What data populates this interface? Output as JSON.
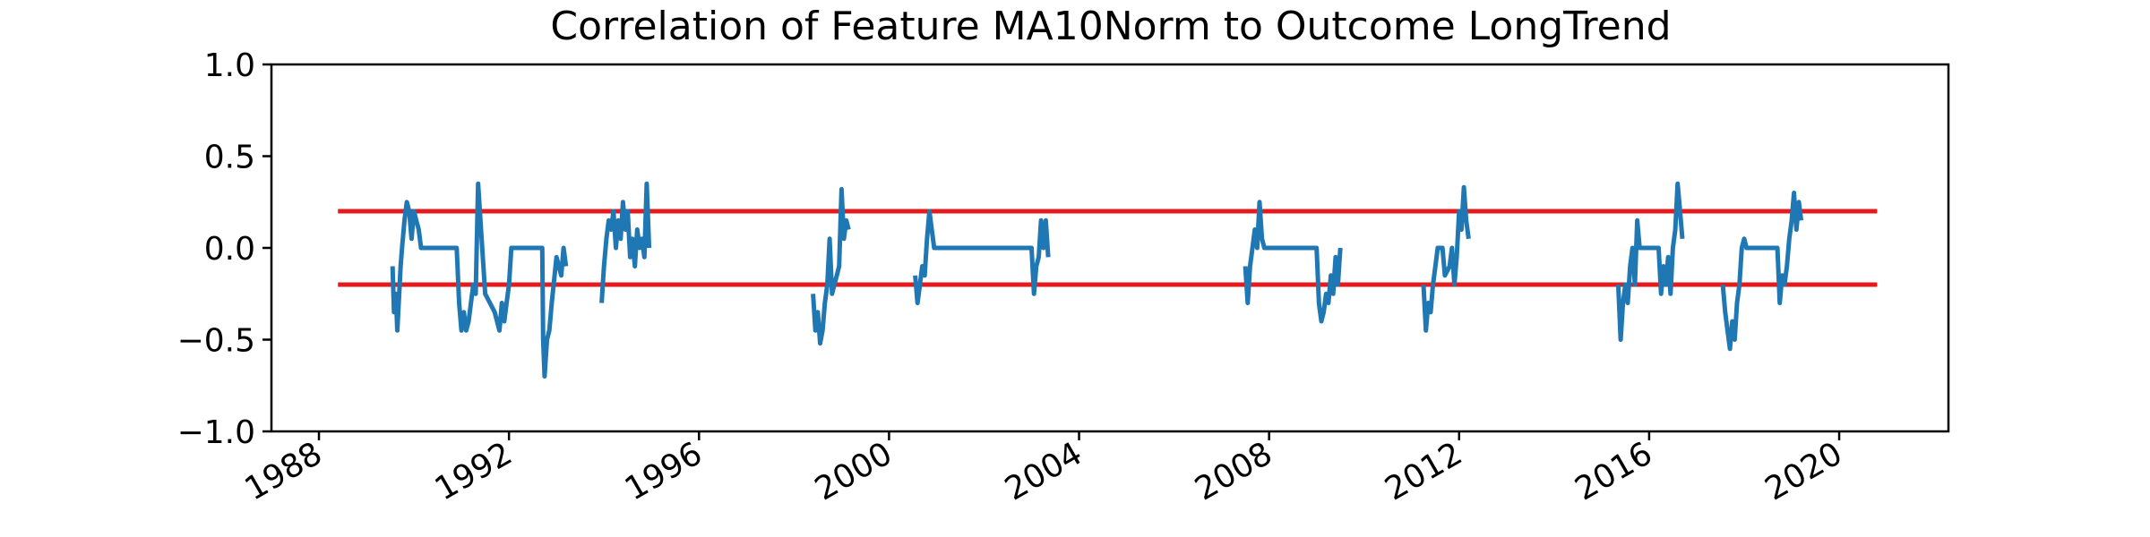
{
  "chart_data": {
    "type": "line",
    "title": "Correlation of Feature MA10Norm to Outcome LongTrend",
    "xlabel": "",
    "ylabel": "",
    "ylim": [
      -1.0,
      1.0
    ],
    "xlim": [
      1987.0,
      2022.3
    ],
    "y_ticks": [
      "1.0",
      "0.5",
      "0.0",
      "−0.5",
      "−1.0"
    ],
    "y_tick_values": [
      1.0,
      0.5,
      0.0,
      -0.5,
      -1.0
    ],
    "x_ticks": [
      "1988",
      "1992",
      "1996",
      "2000",
      "2004",
      "2008",
      "2012",
      "2016",
      "2020"
    ],
    "x_tick_values": [
      1988,
      1992,
      1996,
      2000,
      2004,
      2008,
      2012,
      2016,
      2020
    ],
    "grid": false,
    "thresholds": [
      {
        "y": 0.2,
        "x_start": 1988.4,
        "x_end": 2020.8,
        "color": "#e41a1c"
      },
      {
        "y": -0.2,
        "x_start": 1988.4,
        "x_end": 2020.8,
        "color": "#e41a1c"
      }
    ],
    "series": [
      {
        "color": "#1f77b4",
        "segments": [
          {
            "x": [
              1989.55,
              1989.58,
              1989.62,
              1989.65,
              1989.68,
              1989.72,
              1989.75,
              1989.8,
              1989.85,
              1989.9,
              1989.95,
              1990.0,
              1990.05,
              1990.1,
              1990.15,
              1990.2,
              1990.3,
              1990.6,
              1990.9,
              1990.95,
              1991.0,
              1991.05,
              1991.1,
              1991.15,
              1991.2,
              1991.25,
              1991.3,
              1991.35,
              1991.4,
              1991.5,
              1991.6,
              1991.7,
              1991.8,
              1991.85,
              1991.9,
              1991.95,
              1992.0,
              1992.05,
              1992.1,
              1992.2,
              1992.4,
              1992.6,
              1992.7,
              1992.72,
              1992.75,
              1992.8,
              1992.85,
              1992.9,
              1993.0,
              1993.1,
              1993.15,
              1993.2
            ],
            "y": [
              -0.1,
              -0.35,
              -0.25,
              -0.45,
              -0.3,
              -0.1,
              0.0,
              0.15,
              0.25,
              0.2,
              0.05,
              0.2,
              0.15,
              0.1,
              0.0,
              0.0,
              0.0,
              0.0,
              0.0,
              -0.3,
              -0.45,
              -0.35,
              -0.45,
              -0.4,
              -0.3,
              -0.2,
              -0.25,
              0.35,
              0.15,
              -0.25,
              -0.3,
              -0.35,
              -0.45,
              -0.3,
              -0.4,
              -0.3,
              -0.2,
              0.0,
              0.0,
              0.0,
              0.0,
              0.0,
              0.0,
              -0.5,
              -0.7,
              -0.5,
              -0.45,
              -0.3,
              -0.05,
              -0.15,
              0.0,
              -0.1
            ]
          },
          {
            "x": [
              1993.95,
              1994.0,
              1994.05,
              1994.1,
              1994.15,
              1994.2,
              1994.25,
              1994.3,
              1994.35,
              1994.4,
              1994.45,
              1994.5,
              1994.55,
              1994.6,
              1994.65,
              1994.7,
              1994.75,
              1994.8,
              1994.85,
              1994.9,
              1994.95
            ],
            "y": [
              -0.3,
              -0.1,
              0.05,
              0.15,
              0.1,
              0.2,
              0.0,
              0.15,
              0.05,
              0.25,
              0.1,
              0.2,
              -0.05,
              0.05,
              -0.1,
              0.1,
              0.0,
              0.05,
              -0.05,
              0.35,
              0.0
            ]
          },
          {
            "x": [
              1998.4,
              1998.45,
              1998.5,
              1998.55,
              1998.6,
              1998.65,
              1998.7,
              1998.75,
              1998.8,
              1998.85,
              1998.9,
              1998.95,
              1999.0,
              1999.05,
              1999.1,
              1999.15
            ],
            "y": [
              -0.25,
              -0.45,
              -0.35,
              -0.52,
              -0.45,
              -0.3,
              -0.2,
              0.05,
              -0.25,
              -0.2,
              -0.15,
              -0.1,
              0.32,
              0.05,
              0.15,
              0.1
            ]
          },
          {
            "x": [
              2000.55,
              2000.6,
              2000.65,
              2000.7,
              2000.75,
              2000.8,
              2000.85,
              2000.9,
              2000.95,
              2001.0,
              2001.5,
              2002.5,
              2003.0,
              2003.05,
              2003.1,
              2003.15,
              2003.2,
              2003.25,
              2003.3,
              2003.35
            ],
            "y": [
              -0.15,
              -0.3,
              -0.2,
              -0.1,
              -0.15,
              0.05,
              0.2,
              0.1,
              0.0,
              0.0,
              0.0,
              0.0,
              0.0,
              -0.25,
              -0.1,
              -0.05,
              0.15,
              0.0,
              0.15,
              -0.05
            ]
          },
          {
            "x": [
              2007.5,
              2007.55,
              2007.6,
              2007.65,
              2007.7,
              2007.75,
              2007.8,
              2007.85,
              2007.9,
              2008.0,
              2008.5,
              2009.0,
              2009.05,
              2009.1,
              2009.15,
              2009.2,
              2009.25,
              2009.3,
              2009.35,
              2009.4,
              2009.45,
              2009.5
            ],
            "y": [
              -0.1,
              -0.3,
              -0.1,
              0.0,
              0.1,
              0.0,
              0.25,
              0.05,
              0.0,
              0.0,
              0.0,
              0.0,
              -0.3,
              -0.4,
              -0.35,
              -0.25,
              -0.3,
              -0.15,
              -0.25,
              -0.05,
              -0.2,
              0.0
            ]
          },
          {
            "x": [
              2011.25,
              2011.3,
              2011.35,
              2011.4,
              2011.45,
              2011.5,
              2011.55,
              2011.6,
              2011.65,
              2011.7,
              2011.8,
              2011.85,
              2011.9,
              2011.95,
              2012.0,
              2012.05,
              2012.1,
              2012.15,
              2012.2
            ],
            "y": [
              -0.2,
              -0.45,
              -0.3,
              -0.35,
              -0.2,
              -0.1,
              0.0,
              0.0,
              0.0,
              -0.15,
              -0.1,
              0.0,
              -0.2,
              -0.05,
              0.2,
              0.1,
              0.33,
              0.15,
              0.05
            ]
          },
          {
            "x": [
              2015.35,
              2015.4,
              2015.45,
              2015.5,
              2015.55,
              2015.6,
              2015.65,
              2015.7,
              2015.75,
              2015.8,
              2015.85,
              2016.0,
              2016.2,
              2016.25,
              2016.3,
              2016.35,
              2016.4,
              2016.45,
              2016.5,
              2016.55,
              2016.6,
              2016.65,
              2016.7
            ],
            "y": [
              -0.2,
              -0.5,
              -0.3,
              -0.2,
              -0.3,
              -0.1,
              0.0,
              -0.2,
              0.15,
              0.0,
              0.0,
              0.0,
              0.0,
              -0.25,
              -0.1,
              -0.2,
              -0.05,
              -0.25,
              0.0,
              0.1,
              0.35,
              0.2,
              0.05
            ]
          },
          {
            "x": [
              2017.55,
              2017.6,
              2017.65,
              2017.7,
              2017.75,
              2017.8,
              2017.85,
              2017.9,
              2017.95,
              2018.0,
              2018.05,
              2018.1,
              2018.2,
              2018.5,
              2018.7,
              2018.75,
              2018.8,
              2018.85,
              2018.9,
              2018.95,
              2019.0,
              2019.05,
              2019.1,
              2019.15,
              2019.2
            ],
            "y": [
              -0.2,
              -0.35,
              -0.45,
              -0.55,
              -0.4,
              -0.5,
              -0.3,
              -0.2,
              0.0,
              0.05,
              0.0,
              0.0,
              0.0,
              0.0,
              0.0,
              -0.3,
              -0.15,
              -0.2,
              -0.1,
              0.05,
              0.15,
              0.3,
              0.1,
              0.25,
              0.15
            ]
          }
        ]
      }
    ]
  }
}
